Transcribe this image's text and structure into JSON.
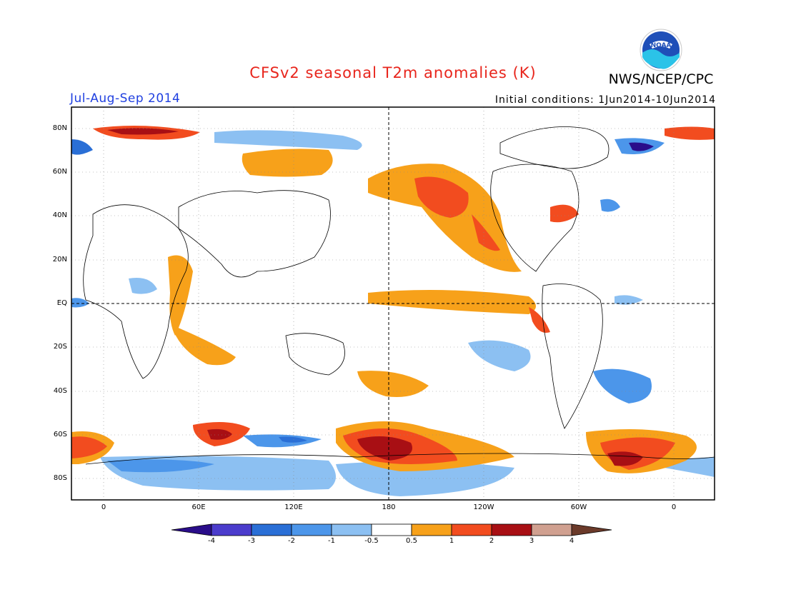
{
  "header": {
    "title": "CFSv2 seasonal T2m anomalies (K)",
    "agency": "NWS/NCEP/CPC",
    "period": "Jul-Aug-Sep 2014",
    "initial_conditions": "Initial conditions: 1Jun2014-10Jun2014",
    "logo_icon": "noaa-logo-icon"
  },
  "map": {
    "lat_labels": [
      "80N",
      "60N",
      "40N",
      "20N",
      "EQ",
      "20S",
      "40S",
      "60S",
      "80S"
    ],
    "lon_labels": [
      "0",
      "60E",
      "120E",
      "180",
      "120W",
      "60W",
      "0"
    ]
  },
  "colorbar": {
    "labels": [
      "-4",
      "-3",
      "-2",
      "-1",
      "-0.5",
      "0.5",
      "1",
      "2",
      "3",
      "4"
    ],
    "colors": [
      "#2a0d8a",
      "#4b3ccc",
      "#2a6fd6",
      "#4c96ea",
      "#8cc0f2",
      "#ffffff",
      "#f7a11a",
      "#f24c1f",
      "#a80f14",
      "#d0a090",
      "#6b3a2a"
    ]
  }
}
